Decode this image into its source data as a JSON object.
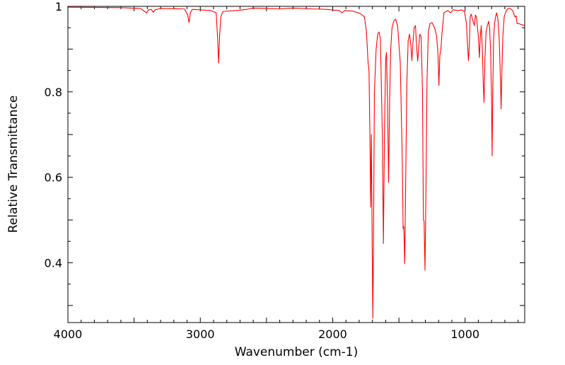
{
  "chart_data": {
    "type": "line",
    "title": "",
    "xlabel": "Wavenumber (cm-1)",
    "ylabel": "Relative Transmittance",
    "xlim": [
      4000,
      550
    ],
    "ylim": [
      0.26,
      1.0
    ],
    "x_ticks": [
      4000,
      3000,
      2000,
      1000
    ],
    "x_tick_labels": [
      "4000",
      "3000",
      "2000",
      "1000"
    ],
    "y_ticks": [
      0.4,
      0.6,
      0.8,
      1.0
    ],
    "y_tick_labels": [
      "0.4",
      "0.6",
      "0.8",
      "1"
    ],
    "grid": false,
    "legend": "none",
    "series": [
      {
        "name": "IR spectrum",
        "color": "#ff0000",
        "points": [
          [
            4000,
            0.998
          ],
          [
            3600,
            0.997
          ],
          [
            3450,
            0.995
          ],
          [
            3420,
            0.988
          ],
          [
            3405,
            0.985
          ],
          [
            3390,
            0.992
          ],
          [
            3370,
            0.993
          ],
          [
            3355,
            0.986
          ],
          [
            3340,
            0.992
          ],
          [
            3300,
            0.995
          ],
          [
            3120,
            0.994
          ],
          [
            3095,
            0.98
          ],
          [
            3085,
            0.962
          ],
          [
            3075,
            0.985
          ],
          [
            3060,
            0.993
          ],
          [
            2960,
            0.991
          ],
          [
            2920,
            0.99
          ],
          [
            2880,
            0.985
          ],
          [
            2870,
            0.93
          ],
          [
            2862,
            0.868
          ],
          [
            2854,
            0.93
          ],
          [
            2845,
            0.975
          ],
          [
            2830,
            0.988
          ],
          [
            2700,
            0.991
          ],
          [
            2650,
            0.993
          ],
          [
            2600,
            0.996
          ],
          [
            2400,
            0.994
          ],
          [
            2300,
            0.996
          ],
          [
            2150,
            0.994
          ],
          [
            2050,
            0.993
          ],
          [
            1950,
            0.99
          ],
          [
            1930,
            0.985
          ],
          [
            1910,
            0.99
          ],
          [
            1850,
            0.989
          ],
          [
            1790,
            0.983
          ],
          [
            1760,
            0.975
          ],
          [
            1745,
            0.94
          ],
          [
            1733,
            0.87
          ],
          [
            1726,
            0.85
          ],
          [
            1719,
            0.7
          ],
          [
            1713,
            0.53
          ],
          [
            1708,
            0.7
          ],
          [
            1702,
            0.45
          ],
          [
            1697,
            0.27
          ],
          [
            1692,
            0.45
          ],
          [
            1685,
            0.8
          ],
          [
            1672,
            0.9
          ],
          [
            1660,
            0.935
          ],
          [
            1650,
            0.94
          ],
          [
            1640,
            0.925
          ],
          [
            1625,
            0.7
          ],
          [
            1617,
            0.445
          ],
          [
            1609,
            0.7
          ],
          [
            1600,
            0.875
          ],
          [
            1594,
            0.892
          ],
          [
            1586,
            0.78
          ],
          [
            1578,
            0.588
          ],
          [
            1570,
            0.78
          ],
          [
            1562,
            0.9
          ],
          [
            1552,
            0.95
          ],
          [
            1540,
            0.965
          ],
          [
            1525,
            0.97
          ],
          [
            1510,
            0.955
          ],
          [
            1490,
            0.87
          ],
          [
            1475,
            0.65
          ],
          [
            1468,
            0.48
          ],
          [
            1463,
            0.485
          ],
          [
            1456,
            0.398
          ],
          [
            1450,
            0.56
          ],
          [
            1440,
            0.82
          ],
          [
            1430,
            0.92
          ],
          [
            1420,
            0.935
          ],
          [
            1410,
            0.91
          ],
          [
            1402,
            0.873
          ],
          [
            1395,
            0.91
          ],
          [
            1385,
            0.95
          ],
          [
            1375,
            0.955
          ],
          [
            1366,
            0.905
          ],
          [
            1358,
            0.872
          ],
          [
            1350,
            0.905
          ],
          [
            1342,
            0.935
          ],
          [
            1332,
            0.928
          ],
          [
            1322,
            0.8
          ],
          [
            1315,
            0.5
          ],
          [
            1310,
            0.498
          ],
          [
            1303,
            0.383
          ],
          [
            1296,
            0.56
          ],
          [
            1288,
            0.82
          ],
          [
            1278,
            0.94
          ],
          [
            1265,
            0.96
          ],
          [
            1250,
            0.962
          ],
          [
            1230,
            0.95
          ],
          [
            1215,
            0.93
          ],
          [
            1205,
            0.89
          ],
          [
            1198,
            0.815
          ],
          [
            1191,
            0.885
          ],
          [
            1183,
            0.9
          ],
          [
            1175,
            0.935
          ],
          [
            1160,
            0.985
          ],
          [
            1130,
            0.99
          ],
          [
            1110,
            0.985
          ],
          [
            1090,
            0.992
          ],
          [
            1050,
            0.99
          ],
          [
            1030,
            0.992
          ],
          [
            1005,
            0.988
          ],
          [
            990,
            0.96
          ],
          [
            980,
            0.9
          ],
          [
            975,
            0.873
          ],
          [
            968,
            0.91
          ],
          [
            962,
            0.975
          ],
          [
            955,
            0.982
          ],
          [
            940,
            0.965
          ],
          [
            930,
            0.955
          ],
          [
            922,
            0.98
          ],
          [
            915,
            0.975
          ],
          [
            900,
            0.93
          ],
          [
            892,
            0.88
          ],
          [
            885,
            0.93
          ],
          [
            878,
            0.955
          ],
          [
            870,
            0.9
          ],
          [
            862,
            0.81
          ],
          [
            857,
            0.775
          ],
          [
            850,
            0.88
          ],
          [
            842,
            0.94
          ],
          [
            832,
            0.955
          ],
          [
            822,
            0.965
          ],
          [
            815,
            0.95
          ],
          [
            808,
            0.9
          ],
          [
            801,
            0.8
          ],
          [
            796,
            0.65
          ],
          [
            791,
            0.8
          ],
          [
            785,
            0.92
          ],
          [
            778,
            0.96
          ],
          [
            770,
            0.975
          ],
          [
            762,
            0.985
          ],
          [
            752,
            0.97
          ],
          [
            742,
            0.92
          ],
          [
            735,
            0.85
          ],
          [
            728,
            0.76
          ],
          [
            722,
            0.85
          ],
          [
            715,
            0.93
          ],
          [
            705,
            0.975
          ],
          [
            690,
            0.99
          ],
          [
            675,
            0.995
          ],
          [
            660,
            0.995
          ],
          [
            640,
            0.99
          ],
          [
            630,
            0.98
          ],
          [
            622,
            0.975
          ],
          [
            615,
            0.978
          ],
          [
            608,
            0.96
          ],
          [
            600,
            0.96
          ],
          [
            550,
            0.955
          ]
        ]
      }
    ]
  }
}
